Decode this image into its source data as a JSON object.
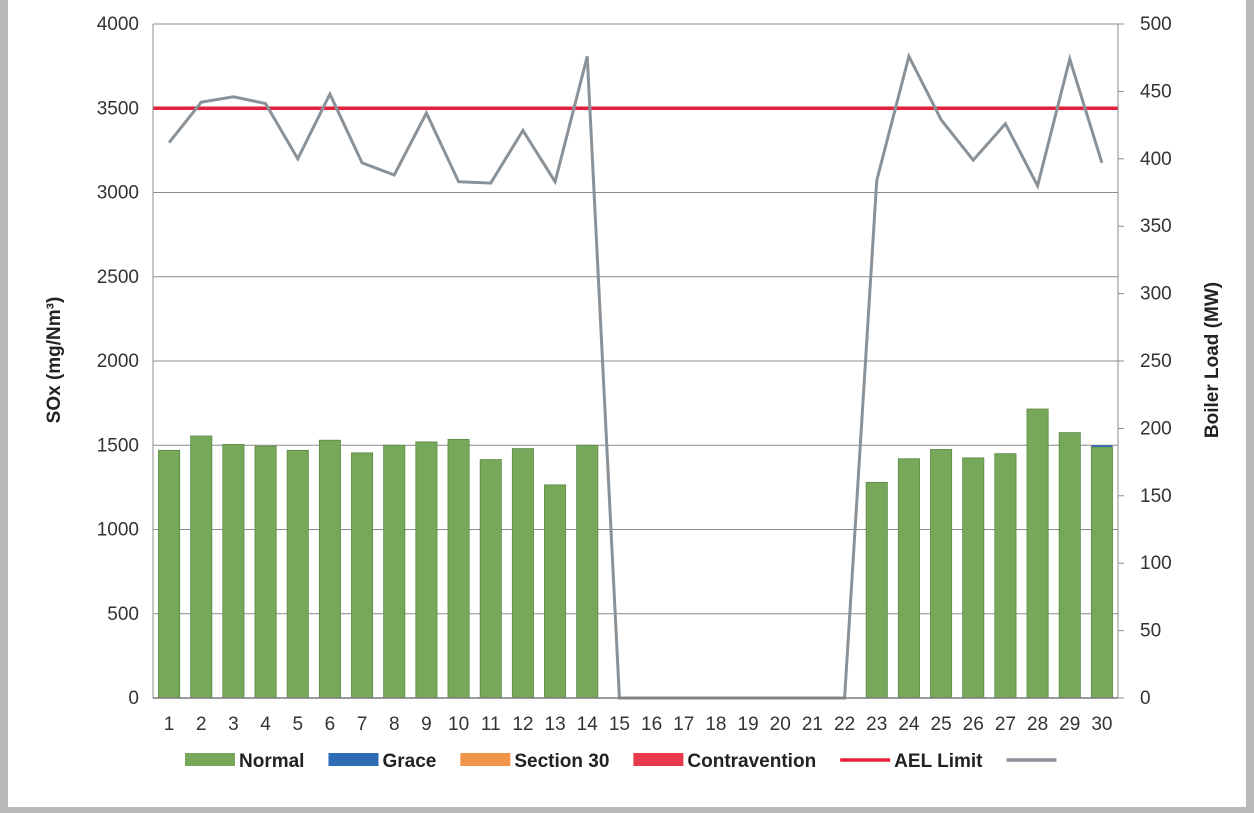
{
  "chart_data": {
    "type": "bar",
    "categories": [
      "1",
      "2",
      "3",
      "4",
      "5",
      "6",
      "7",
      "8",
      "9",
      "10",
      "11",
      "12",
      "13",
      "14",
      "15",
      "16",
      "17",
      "18",
      "19",
      "20",
      "21",
      "22",
      "23",
      "24",
      "25",
      "26",
      "27",
      "28",
      "29",
      "30"
    ],
    "series": [
      {
        "name": "Normal",
        "type": "bar",
        "axis": "left",
        "color": "#77a85a",
        "values": [
          1470,
          1555,
          1505,
          1495,
          1470,
          1530,
          1455,
          1500,
          1520,
          1535,
          1415,
          1480,
          1265,
          1500,
          0,
          0,
          0,
          0,
          0,
          0,
          0,
          0,
          1280,
          1420,
          1475,
          1425,
          1450,
          1715,
          1575,
          1490
        ]
      },
      {
        "name": "Grace",
        "type": "bar",
        "axis": "left",
        "color": "#2e6bb5",
        "values": [
          0,
          0,
          0,
          0,
          0,
          0,
          0,
          0,
          0,
          0,
          0,
          0,
          0,
          0,
          0,
          0,
          0,
          0,
          0,
          0,
          0,
          0,
          0,
          0,
          0,
          0,
          0,
          0,
          0,
          10
        ]
      },
      {
        "name": "Section 30",
        "type": "bar",
        "axis": "left",
        "color": "#f0954a",
        "values": [
          0,
          0,
          0,
          0,
          0,
          0,
          0,
          0,
          0,
          0,
          0,
          0,
          0,
          0,
          0,
          0,
          0,
          0,
          0,
          0,
          0,
          0,
          0,
          0,
          0,
          0,
          0,
          0,
          0,
          0
        ]
      },
      {
        "name": "Contravention",
        "type": "bar",
        "axis": "left",
        "color": "#e8394d",
        "values": [
          0,
          0,
          0,
          0,
          0,
          0,
          0,
          0,
          0,
          0,
          0,
          0,
          0,
          0,
          0,
          0,
          0,
          0,
          0,
          0,
          0,
          0,
          0,
          0,
          0,
          0,
          0,
          0,
          0,
          0
        ]
      },
      {
        "name": "AEL Limit",
        "type": "line",
        "axis": "left",
        "color": "#e5203a",
        "values": [
          3500,
          3500,
          3500,
          3500,
          3500,
          3500,
          3500,
          3500,
          3500,
          3500,
          3500,
          3500,
          3500,
          3500,
          3500,
          3500,
          3500,
          3500,
          3500,
          3500,
          3500,
          3500,
          3500,
          3500,
          3500,
          3500,
          3500,
          3500,
          3500,
          3500
        ]
      },
      {
        "name": "",
        "type": "line",
        "axis": "right",
        "color": "#8a9299",
        "values": [
          412,
          442,
          446,
          441,
          400,
          448,
          397,
          388,
          434,
          383,
          382,
          421,
          383,
          476,
          0,
          0,
          0,
          0,
          0,
          0,
          0,
          0,
          384,
          476,
          429,
          399,
          426,
          380,
          474,
          397
        ]
      }
    ],
    "ylabel": "SOx (mg/Nm³)",
    "ylim": [
      0,
      4000
    ],
    "yticks": [
      "0",
      "500",
      "1000",
      "1500",
      "2000",
      "2500",
      "3000",
      "3500",
      "4000"
    ],
    "y2label": "Boiler Load (MW)",
    "y2lim": [
      0,
      500
    ],
    "y2ticks": [
      "0",
      "50",
      "100",
      "150",
      "200",
      "250",
      "300",
      "350",
      "400",
      "450",
      "500"
    ],
    "grid": true,
    "legend_position": "bottom"
  },
  "legend": {
    "items": [
      {
        "label": "Normal",
        "color": "#77a85a",
        "kind": "bar"
      },
      {
        "label": "Grace",
        "color": "#2e6bb5",
        "kind": "bar"
      },
      {
        "label": "Section 30",
        "color": "#f0954a",
        "kind": "bar"
      },
      {
        "label": "Contravention",
        "color": "#e8394d",
        "kind": "bar"
      },
      {
        "label": "AEL Limit",
        "color": "#e5203a",
        "kind": "line"
      },
      {
        "label": "",
        "color": "#8a9299",
        "kind": "line"
      }
    ]
  }
}
